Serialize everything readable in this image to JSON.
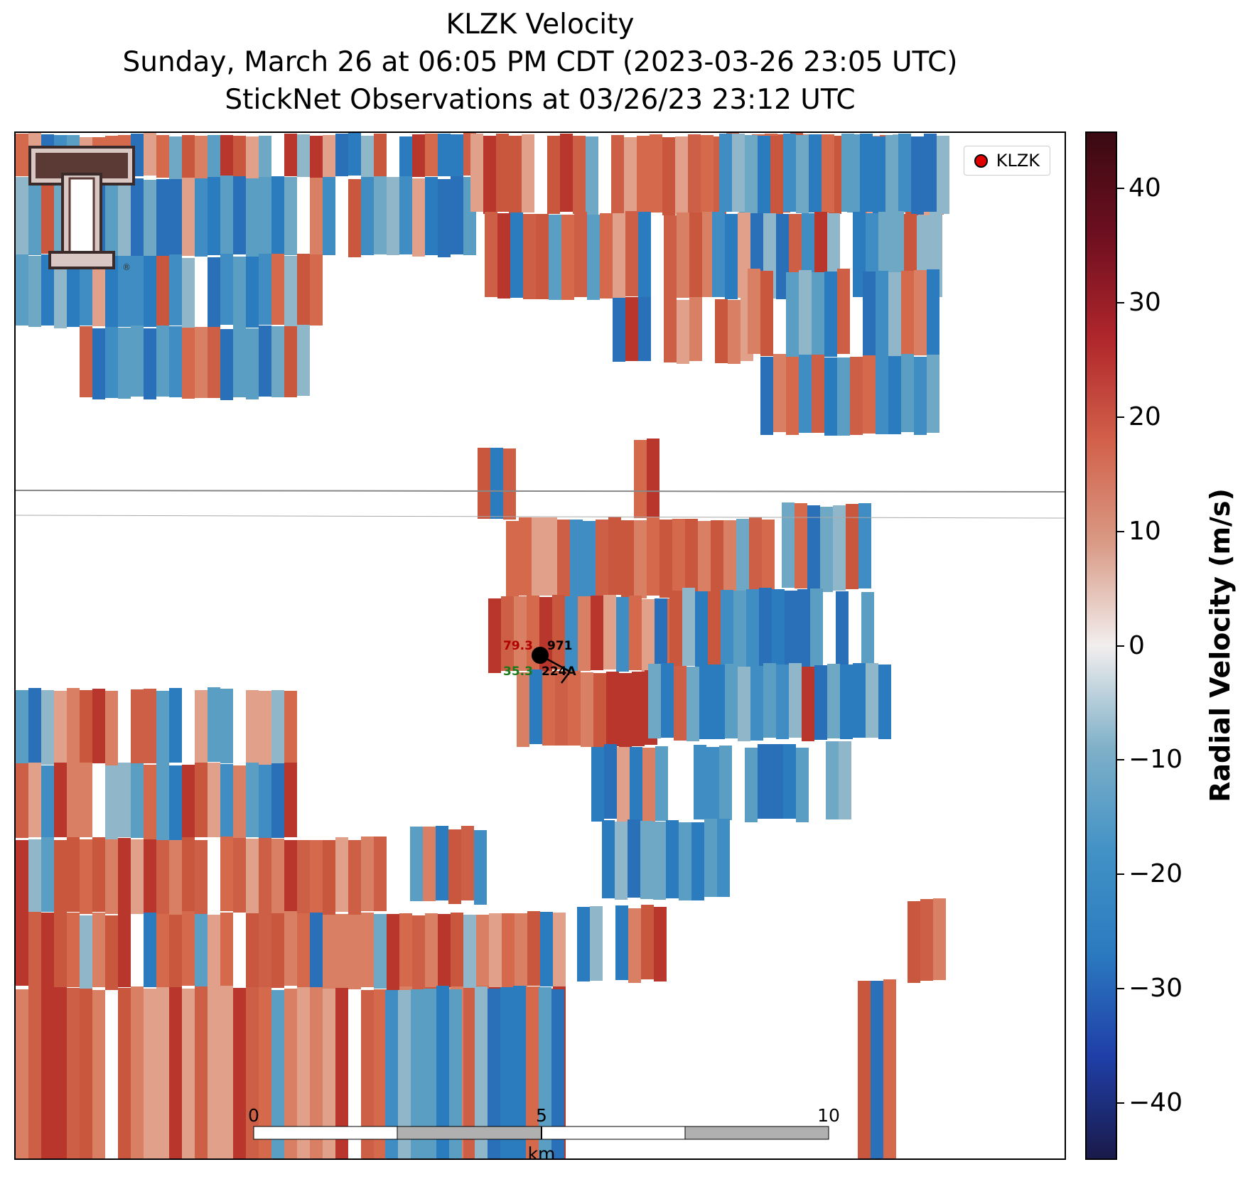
{
  "title": {
    "line1": "KLZK Velocity",
    "line2": "Sunday, March 26 at 06:05 PM CDT (2023-03-26 23:05 UTC)",
    "line3": "StickNet Observations at 03/26/23 23:12 UTC"
  },
  "legend": {
    "label": "KLZK",
    "marker_color": "#e00000"
  },
  "logo": {
    "name": "Texas Tech double-T logo",
    "mark": "®"
  },
  "colorbar": {
    "label": "Radial Velocity (m/s)",
    "range": [
      -45,
      45
    ],
    "ticks": [
      "40",
      "30",
      "20",
      "10",
      "0",
      "−10",
      "−20",
      "−30",
      "−40"
    ],
    "tick_values": [
      40,
      30,
      20,
      10,
      0,
      -10,
      -20,
      -30,
      -40
    ],
    "colors": [
      "#1a1a4a",
      "#1f3fa8",
      "#2b7ac0",
      "#4292c6",
      "#7fb0c8",
      "#f2eeee",
      "#d99a85",
      "#d2604a",
      "#b0262b",
      "#6e0f20",
      "#3a0a12"
    ]
  },
  "station": {
    "temperature": "79.3",
    "dewpoint": "35.3",
    "pressure": "971",
    "id": "224A",
    "temperature_color": "#b00000",
    "dewpoint_color": "#1a7a1a"
  },
  "scale_bar": {
    "unit": "km",
    "labels": [
      "0",
      "5",
      "10"
    ]
  }
}
